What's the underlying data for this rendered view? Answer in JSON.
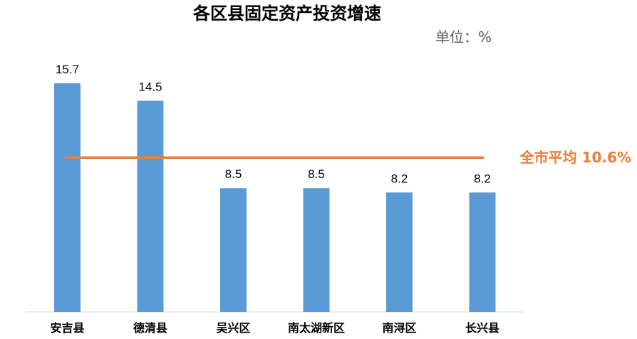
{
  "chart_data": {
    "type": "bar",
    "title": "各区县固定资产投资增速",
    "unit_label": "单位：%",
    "categories": [
      "安吉县",
      "德清县",
      "吴兴区",
      "南太湖新区",
      "南浔区",
      "长兴县"
    ],
    "values": [
      15.7,
      14.5,
      8.5,
      8.5,
      8.2,
      8.2
    ],
    "value_labels": [
      "15.7",
      "14.5",
      "8.5",
      "8.5",
      "8.2",
      "8.2"
    ],
    "ylim": [
      0,
      17
    ],
    "grid": false,
    "bar_color": "#5B9BD5",
    "reference_line": {
      "label": "全市平均 10.6%",
      "value": 10.6,
      "color": "#ED7D31"
    }
  }
}
